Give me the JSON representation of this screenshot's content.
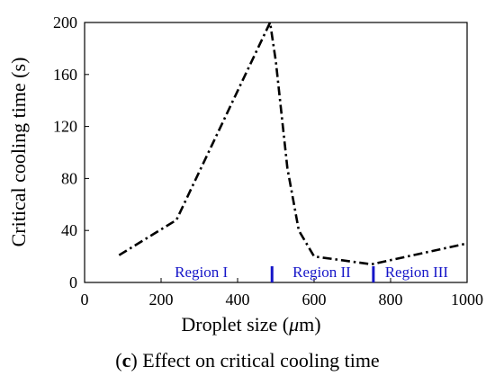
{
  "chart_data": {
    "type": "line",
    "xlabel_prefix": "Droplet size (",
    "xlabel_mu": "μ",
    "xlabel_suffix": "m)",
    "ylabel": "Critical cooling time (s)",
    "xlim": [
      0,
      1000
    ],
    "ylim": [
      0,
      200
    ],
    "xticks": [
      0,
      200,
      400,
      600,
      800,
      1000
    ],
    "yticks": [
      0,
      40,
      80,
      120,
      160,
      200
    ],
    "grid": false,
    "line_style": "dash-dot",
    "line_color": "#000000",
    "series": [
      {
        "x": [
          90,
          240,
          485,
          500,
          530,
          560,
          600,
          750,
          1000
        ],
        "y": [
          21,
          48,
          200,
          170,
          88,
          40,
          20,
          14,
          30
        ]
      }
    ],
    "region_boundaries": [
      490,
      755
    ],
    "region_color": "#1515c8",
    "regions": [
      {
        "label": "Region I",
        "x": 305
      },
      {
        "label": "Region II",
        "x": 620
      },
      {
        "label": "Region III",
        "x": 868
      }
    ],
    "region_label_y": 4
  },
  "caption": {
    "letter": "c",
    "open": "(",
    "close": ")",
    "text": " Effect on critical cooling time"
  }
}
